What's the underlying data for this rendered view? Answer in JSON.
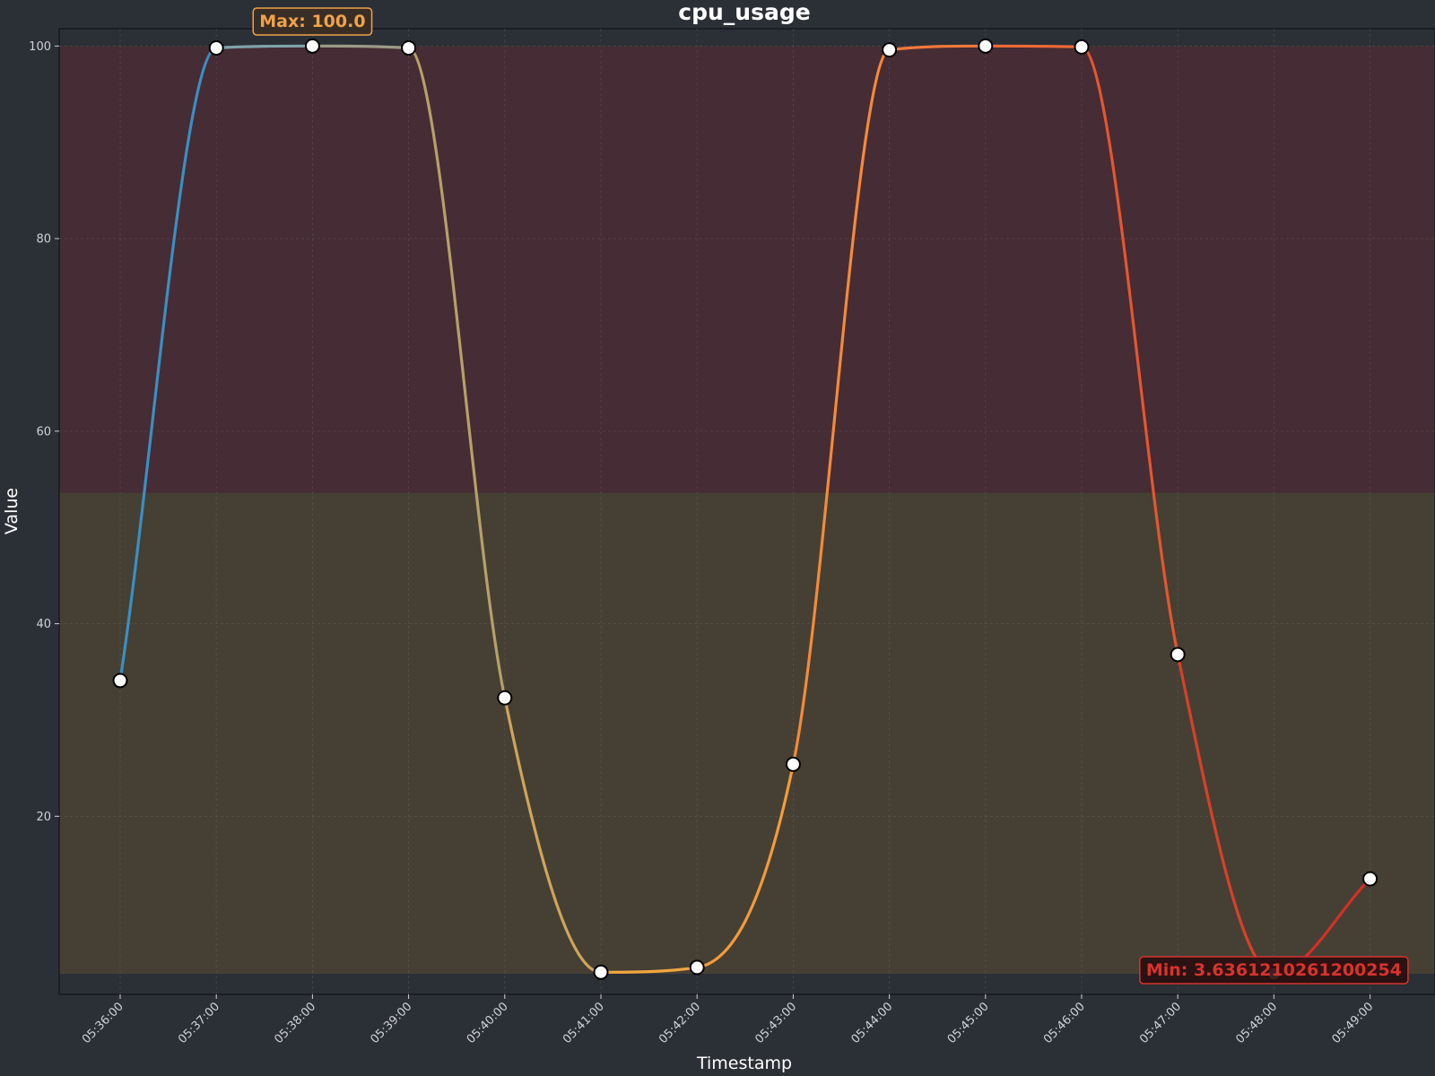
{
  "chart_data": {
    "type": "line",
    "title": "cpu_usage",
    "xlabel": "Timestamp",
    "ylabel": "Value",
    "x": [
      "05:36:00",
      "05:37:00",
      "05:38:00",
      "05:39:00",
      "05:40:00",
      "05:41:00",
      "05:42:00",
      "05:43:00",
      "05:44:00",
      "05:45:00",
      "05:46:00",
      "05:47:00",
      "05:48:00",
      "05:49:00"
    ],
    "y": [
      34.1,
      99.8,
      100.0,
      99.8,
      32.3,
      3.8,
      4.3,
      25.4,
      99.6,
      100.0,
      99.9,
      36.8,
      3.6361210261200254,
      13.5
    ],
    "ylim": [
      1.5,
      101.8
    ],
    "yticks": [
      20,
      40,
      60,
      80,
      100
    ],
    "grid": true,
    "threshold_bands": [
      {
        "from": 53.6,
        "to": 100,
        "color": "#8b2630"
      },
      {
        "from": 3.64,
        "to": 53.6,
        "color": "#8a6f2a"
      }
    ],
    "line_colors": [
      "#3a8fc4",
      "#7fa3a8",
      "#9b9b87",
      "#b5a069",
      "#d1a45a",
      "#f2a640",
      "#f59a3b",
      "#f5893a",
      "#f3793a",
      "#ee6a34",
      "#e5562f",
      "#d9402a",
      "#d33026"
    ],
    "max_label": "Max: 100.0",
    "min_label": "Min: 3.6361210261200254",
    "max_color": "#f0a24a",
    "min_color": "#d8332c"
  }
}
